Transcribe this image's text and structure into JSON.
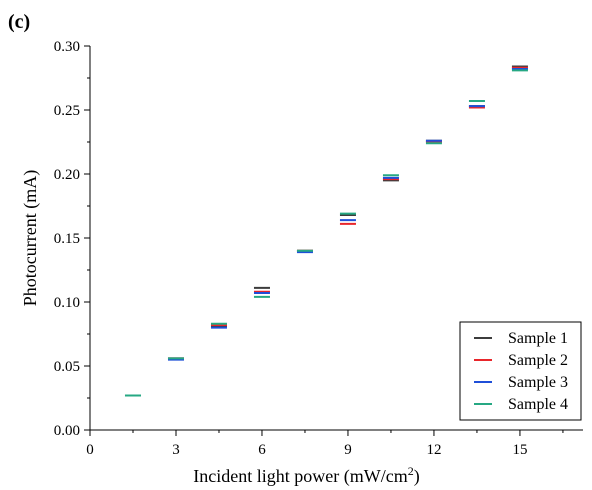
{
  "panel_label": "(c)",
  "chart_data": {
    "type": "scatter",
    "marker": "horizontal-dash",
    "xlabel": "Incident light power (mW/cm",
    "xlabel_sup": "2",
    "xlabel_suffix": ")",
    "ylabel": "Photocurrent (mA)",
    "xlim": [
      0,
      17.2
    ],
    "ylim": [
      0,
      0.3
    ],
    "x_ticks": [
      0,
      3,
      6,
      9,
      12,
      15
    ],
    "x_tick_labels": [
      "0",
      "3",
      "6",
      "9",
      "12",
      "15"
    ],
    "y_ticks": [
      0,
      0.05,
      0.1,
      0.15,
      0.2,
      0.25,
      0.3
    ],
    "y_tick_labels": [
      "0.00",
      "0.05",
      "0.10",
      "0.15",
      "0.20",
      "0.25",
      "0.30"
    ],
    "grid": false,
    "legend_position": "bottom-right",
    "x": [
      1.5,
      3.0,
      4.5,
      6.0,
      7.5,
      9.0,
      10.5,
      12.0,
      13.5,
      15.0
    ],
    "series": [
      {
        "name": "Sample 1",
        "color": "#3c3c3c",
        "values": [
          0.027,
          0.056,
          0.081,
          0.111,
          0.14,
          0.168,
          0.195,
          0.226,
          0.253,
          0.284
        ]
      },
      {
        "name": "Sample 2",
        "color": "#e8262b",
        "values": [
          0.027,
          0.056,
          0.082,
          0.108,
          0.14,
          0.161,
          0.196,
          0.225,
          0.252,
          0.283
        ]
      },
      {
        "name": "Sample 3",
        "color": "#1f4fd8",
        "values": [
          0.027,
          0.055,
          0.08,
          0.107,
          0.139,
          0.164,
          0.197,
          0.226,
          0.253,
          0.282
        ]
      },
      {
        "name": "Sample 4",
        "color": "#26a883",
        "values": [
          0.027,
          0.056,
          0.083,
          0.104,
          0.14,
          0.169,
          0.199,
          0.224,
          0.257,
          0.281
        ]
      }
    ]
  }
}
